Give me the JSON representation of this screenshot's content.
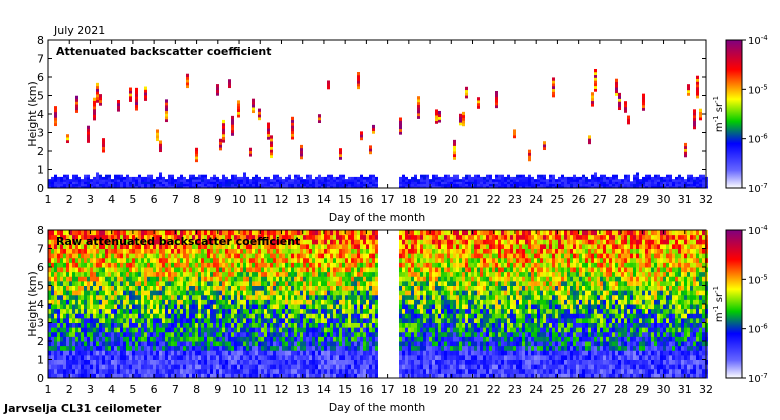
{
  "header": {
    "period": "July 2021",
    "footer": "Jarvselja CL31 ceilometer"
  },
  "chart_data": [
    {
      "type": "heatmap",
      "title": "Attenuated backscatter coefficient",
      "xlabel": "Day of the month",
      "ylabel": "Height (km)",
      "x_ticks": [
        1,
        2,
        3,
        4,
        5,
        6,
        7,
        8,
        9,
        10,
        11,
        12,
        13,
        14,
        15,
        16,
        17,
        18,
        19,
        20,
        21,
        22,
        23,
        24,
        25,
        26,
        27,
        28,
        29,
        30,
        31,
        32
      ],
      "y_ticks": [
        0,
        1,
        2,
        3,
        4,
        5,
        6,
        7,
        8
      ],
      "xlim": [
        1,
        32
      ],
      "ylim": [
        0,
        8
      ],
      "data_gap_days": [
        [
          16.5,
          17.5
        ]
      ],
      "colorbar": {
        "scale": "log",
        "range": [
          1e-07,
          0.0001
        ],
        "ticks": [
          "10",
          "10",
          "10",
          "10"
        ],
        "tick_exponents": [
          "-7",
          "-6",
          "-5",
          "-4"
        ],
        "unit_m": "m",
        "unit_m_exp": "-1",
        "unit_sr": " sr",
        "unit_sr_exp": "-1",
        "colors": [
          "#ffffff",
          "#3333ff",
          "#00c000",
          "#ffff00",
          "#ff0000",
          "#800080"
        ]
      }
    },
    {
      "type": "heatmap",
      "title": "Raw attenuated backscatter coefficient",
      "xlabel": "Day of the month",
      "ylabel": "Height (km)",
      "x_ticks": [
        1,
        2,
        3,
        4,
        5,
        6,
        7,
        8,
        9,
        10,
        11,
        12,
        13,
        14,
        15,
        16,
        17,
        18,
        19,
        20,
        21,
        22,
        23,
        24,
        25,
        26,
        27,
        28,
        29,
        30,
        31,
        32
      ],
      "y_ticks": [
        0,
        1,
        2,
        3,
        4,
        5,
        6,
        7,
        8
      ],
      "xlim": [
        1,
        32
      ],
      "ylim": [
        0,
        8
      ],
      "data_gap_days": [
        [
          16.5,
          17.5
        ]
      ],
      "colorbar": {
        "scale": "log",
        "range": [
          1e-07,
          0.0001
        ],
        "ticks": [
          "10",
          "10",
          "10",
          "10"
        ],
        "tick_exponents": [
          "-7",
          "-6",
          "-5",
          "-4"
        ],
        "unit_m": "m",
        "unit_m_exp": "-1",
        "unit_sr": " sr",
        "unit_sr_exp": "-1",
        "colors": [
          "#ffffff",
          "#3333ff",
          "#00c000",
          "#ffff00",
          "#ff0000",
          "#800080"
        ]
      }
    }
  ]
}
